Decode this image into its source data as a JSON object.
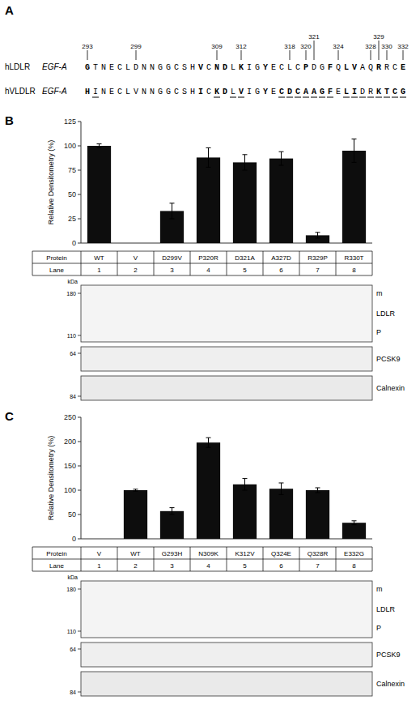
{
  "chart_data": [
    {
      "type": "sequence",
      "panel_label": "A",
      "rows": [
        {
          "name": "hLDLR",
          "domain": "EGF-A",
          "sequence": "GTNECLDNNGGCSHVCNDLKIGYECLCPDGFQLVAQRRCE",
          "bold": [
            0,
            14,
            16,
            17,
            19,
            22,
            27,
            30,
            32,
            33,
            36,
            39
          ]
        },
        {
          "name": "hVLDLR",
          "domain": "EGF-A",
          "sequence": "HINECLVNNGGCSHICKDLVIGYECDCAAGFELIDRKTCG",
          "bold": [
            0,
            14,
            16,
            17,
            19,
            22,
            24,
            25,
            26,
            27,
            28,
            29,
            30,
            32,
            33,
            36,
            37,
            38,
            39
          ],
          "underline": [
            1,
            16,
            18,
            19,
            24,
            25,
            26,
            27,
            28,
            29,
            30,
            32,
            33,
            34,
            35,
            36,
            37,
            38,
            39
          ]
        }
      ],
      "positions": [
        293,
        299,
        309,
        312,
        318,
        320,
        321,
        324,
        328,
        329,
        330,
        332
      ]
    },
    {
      "type": "bar",
      "panel_label": "B",
      "categories": [
        "WT",
        "V",
        "D299V",
        "P320R",
        "D321A",
        "A327D",
        "R329P",
        "R330T"
      ],
      "values": [
        100,
        0,
        33,
        88,
        83,
        87,
        8,
        95
      ],
      "errors": [
        2,
        0,
        8,
        10,
        8,
        7,
        3,
        12
      ],
      "color": "#0d0d0d",
      "ylim": [
        0,
        125
      ],
      "yticks": [
        0,
        25,
        50,
        75,
        100,
        125
      ],
      "ylabel": "Relative Densitometry (%)",
      "tick_labels": "y",
      "table_rows": [
        "Protein",
        "Lane"
      ],
      "lanes": [
        "1",
        "2",
        "3",
        "4",
        "5",
        "6",
        "7",
        "8"
      ],
      "kda_title": "kDa",
      "kda_labels": [
        "180",
        "110",
        "64",
        "84"
      ],
      "blot_labels": [
        "m",
        "LDLR",
        "P",
        "PCSK9",
        "Calnexin"
      ]
    },
    {
      "type": "bar",
      "panel_label": "C",
      "categories": [
        "V",
        "WT",
        "G293H",
        "N309K",
        "K312V",
        "Q324E",
        "Q328R",
        "E332G"
      ],
      "values": [
        0,
        100,
        57,
        198,
        112,
        103,
        100,
        33
      ],
      "errors": [
        0,
        2,
        7,
        10,
        12,
        12,
        5,
        4
      ],
      "color": "#0d0d0d",
      "ylim": [
        0,
        250
      ],
      "yticks": [
        0,
        50,
        100,
        150,
        200,
        250
      ],
      "ylabel": "Relative Densitometry (%)",
      "tick_labels": "y",
      "table_rows": [
        "Protein",
        "Lane"
      ],
      "lanes": [
        "1",
        "2",
        "3",
        "4",
        "5",
        "6",
        "7",
        "8"
      ],
      "kda_title": "kDa",
      "kda_labels": [
        "180",
        "110",
        "64",
        "84"
      ],
      "blot_labels": [
        "m",
        "LDLR",
        "P",
        "PCSK9",
        "Calnexin"
      ]
    }
  ]
}
